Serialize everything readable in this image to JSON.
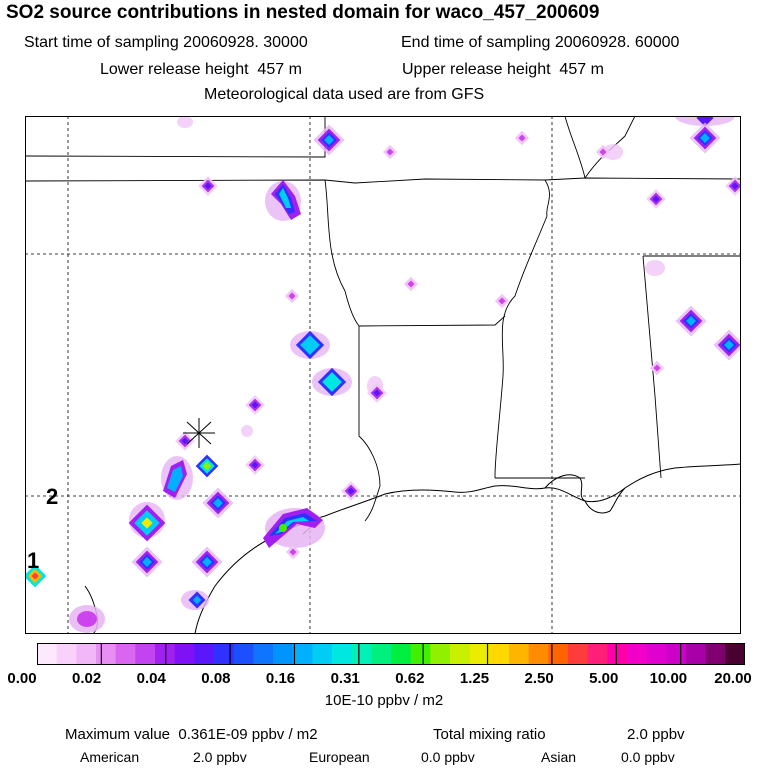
{
  "title": "SO2 source contributions in nested domain for waco_457_200609",
  "start_time_label": "Start time of sampling 20060928. 30000",
  "end_time_label": "End time of sampling 20060928. 60000",
  "lower_release_label": "Lower release height  457 m",
  "upper_release_label": "Upper release height  457 m",
  "met_data_label": "Meteorological data used are from GFS",
  "region_labels": [
    "1",
    "2"
  ],
  "colorbar": {
    "tick_labels": [
      "0.00",
      "0.02",
      "0.04",
      "0.08",
      "0.16",
      "0.31",
      "0.62",
      "1.25",
      "2.50",
      "5.00",
      "10.00",
      "20.00"
    ],
    "units": "10E-10 ppbv / m2",
    "colors": [
      "#fde9fd",
      "#f9d1fb",
      "#f2b7f7",
      "#e88ff3",
      "#d966ef",
      "#c144ef",
      "#a020f0",
      "#8010f5",
      "#5a18fa",
      "#3030ff",
      "#1c50ff",
      "#0f74ff",
      "#0094ff",
      "#00b0ff",
      "#00ccf4",
      "#00e6e0",
      "#00f0b8",
      "#00f080",
      "#00ee40",
      "#40f000",
      "#90f000",
      "#c8f000",
      "#ecec00",
      "#ffd800",
      "#ffb400",
      "#ff8c00",
      "#ff6400",
      "#ff3c3c",
      "#ff1e78",
      "#ff00a8",
      "#f000c8",
      "#e000d0",
      "#cc00c8",
      "#a800a8",
      "#800070",
      "#4a0030"
    ]
  },
  "footer": {
    "max_label": "Maximum value  0.361E-09 ppbv / m2",
    "total_label": "Total mixing ratio",
    "total_value": "2.0 ppbv",
    "american_label": "American",
    "american_value": "2.0 ppbv",
    "european_label": "European",
    "european_value": "0.0 ppbv",
    "asian_label": "Asian",
    "asian_value": "0.0 ppbv"
  }
}
